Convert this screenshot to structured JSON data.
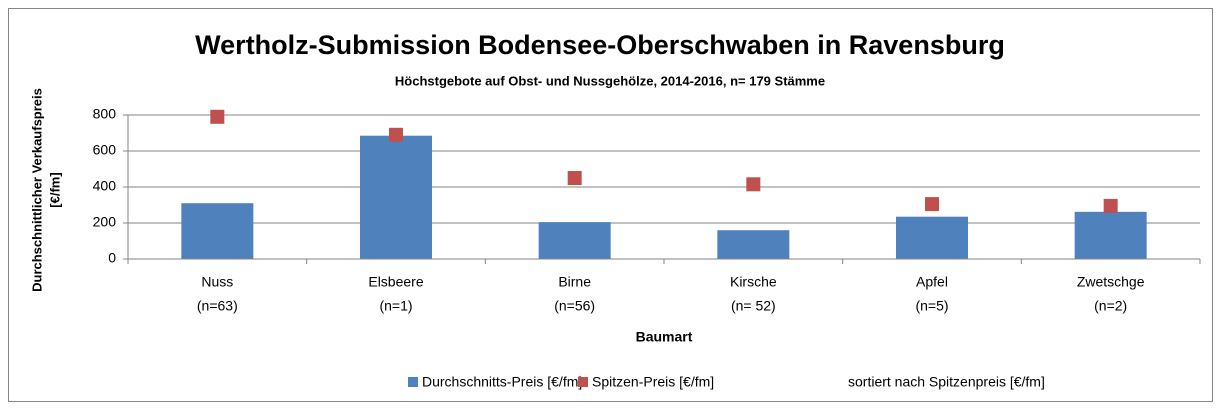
{
  "chart_data": {
    "type": "bar",
    "title": "Wertholz-Submission Bodensee-Oberschwaben in Ravensburg",
    "subtitle": "Höchstgebote auf Obst- und Nussgehölze, 2014-2016, n= 179 Stämme",
    "ylabel": [
      "Durchschnittlicher Verkaufspreis",
      "[€/fm]"
    ],
    "xlabel": "Baumart",
    "categories": [
      "Nuss",
      "Elsbeere",
      "Birne",
      "Kirsche",
      "Apfel",
      "Zwetschge"
    ],
    "category_counts": [
      "(n=63)",
      "(n=1)",
      "(n=56)",
      "(n= 52)",
      "(n=5)",
      "(n=2)"
    ],
    "series": [
      {
        "name": "Durchschnitts-Preis [€/fm]",
        "type": "bar",
        "color": "#4f81bd",
        "values": [
          310,
          685,
          205,
          160,
          235,
          262
        ]
      },
      {
        "name": "Spitzen-Preis [€/fm]",
        "type": "scatter",
        "color": "#c0504d",
        "values": [
          790,
          690,
          450,
          415,
          305,
          295
        ]
      }
    ],
    "note": "sortiert nach Spitzenpreis [€/fm]",
    "ylim": [
      0,
      800
    ],
    "yticks": [
      0,
      200,
      400,
      600,
      800
    ],
    "grid": true,
    "legend": "bottom"
  }
}
